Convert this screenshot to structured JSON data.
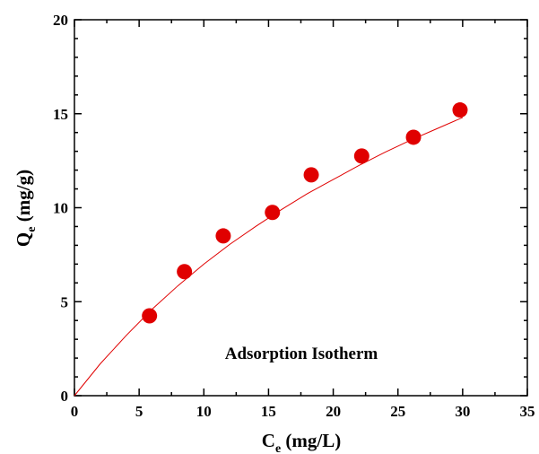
{
  "chart_data": {
    "type": "scatter",
    "xlabel": "C",
    "xlabel_sub": "e",
    "xlabel_unit": " (mg/L)",
    "ylabel": "Q",
    "ylabel_sub": "e",
    "ylabel_unit": " (mg/g)",
    "xlim": [
      0,
      35
    ],
    "ylim": [
      0,
      20
    ],
    "xticks": [
      "0",
      "5",
      "10",
      "15",
      "20",
      "25",
      "30",
      "35"
    ],
    "yticks": [
      "0",
      "5",
      "10",
      "15",
      "20"
    ],
    "annotation": "Adsorption Isotherm",
    "grid": false,
    "series": [
      {
        "kind": "points",
        "color": "#e00000",
        "x": [
          5.8,
          8.5,
          11.5,
          15.3,
          18.3,
          22.2,
          26.2,
          29.8
        ],
        "y": [
          4.25,
          6.6,
          8.5,
          9.75,
          11.75,
          12.75,
          13.75,
          15.2
        ]
      },
      {
        "kind": "fit-curve",
        "color": "#e00000",
        "x": [
          0,
          2,
          4,
          6,
          8,
          10,
          12,
          14,
          16,
          18,
          20,
          22,
          24,
          26,
          28,
          30
        ],
        "y": [
          0,
          1.7,
          3.2,
          4.6,
          5.85,
          7.0,
          8.05,
          9.0,
          9.9,
          10.75,
          11.5,
          12.25,
          12.95,
          13.6,
          14.2,
          14.8
        ]
      }
    ]
  }
}
